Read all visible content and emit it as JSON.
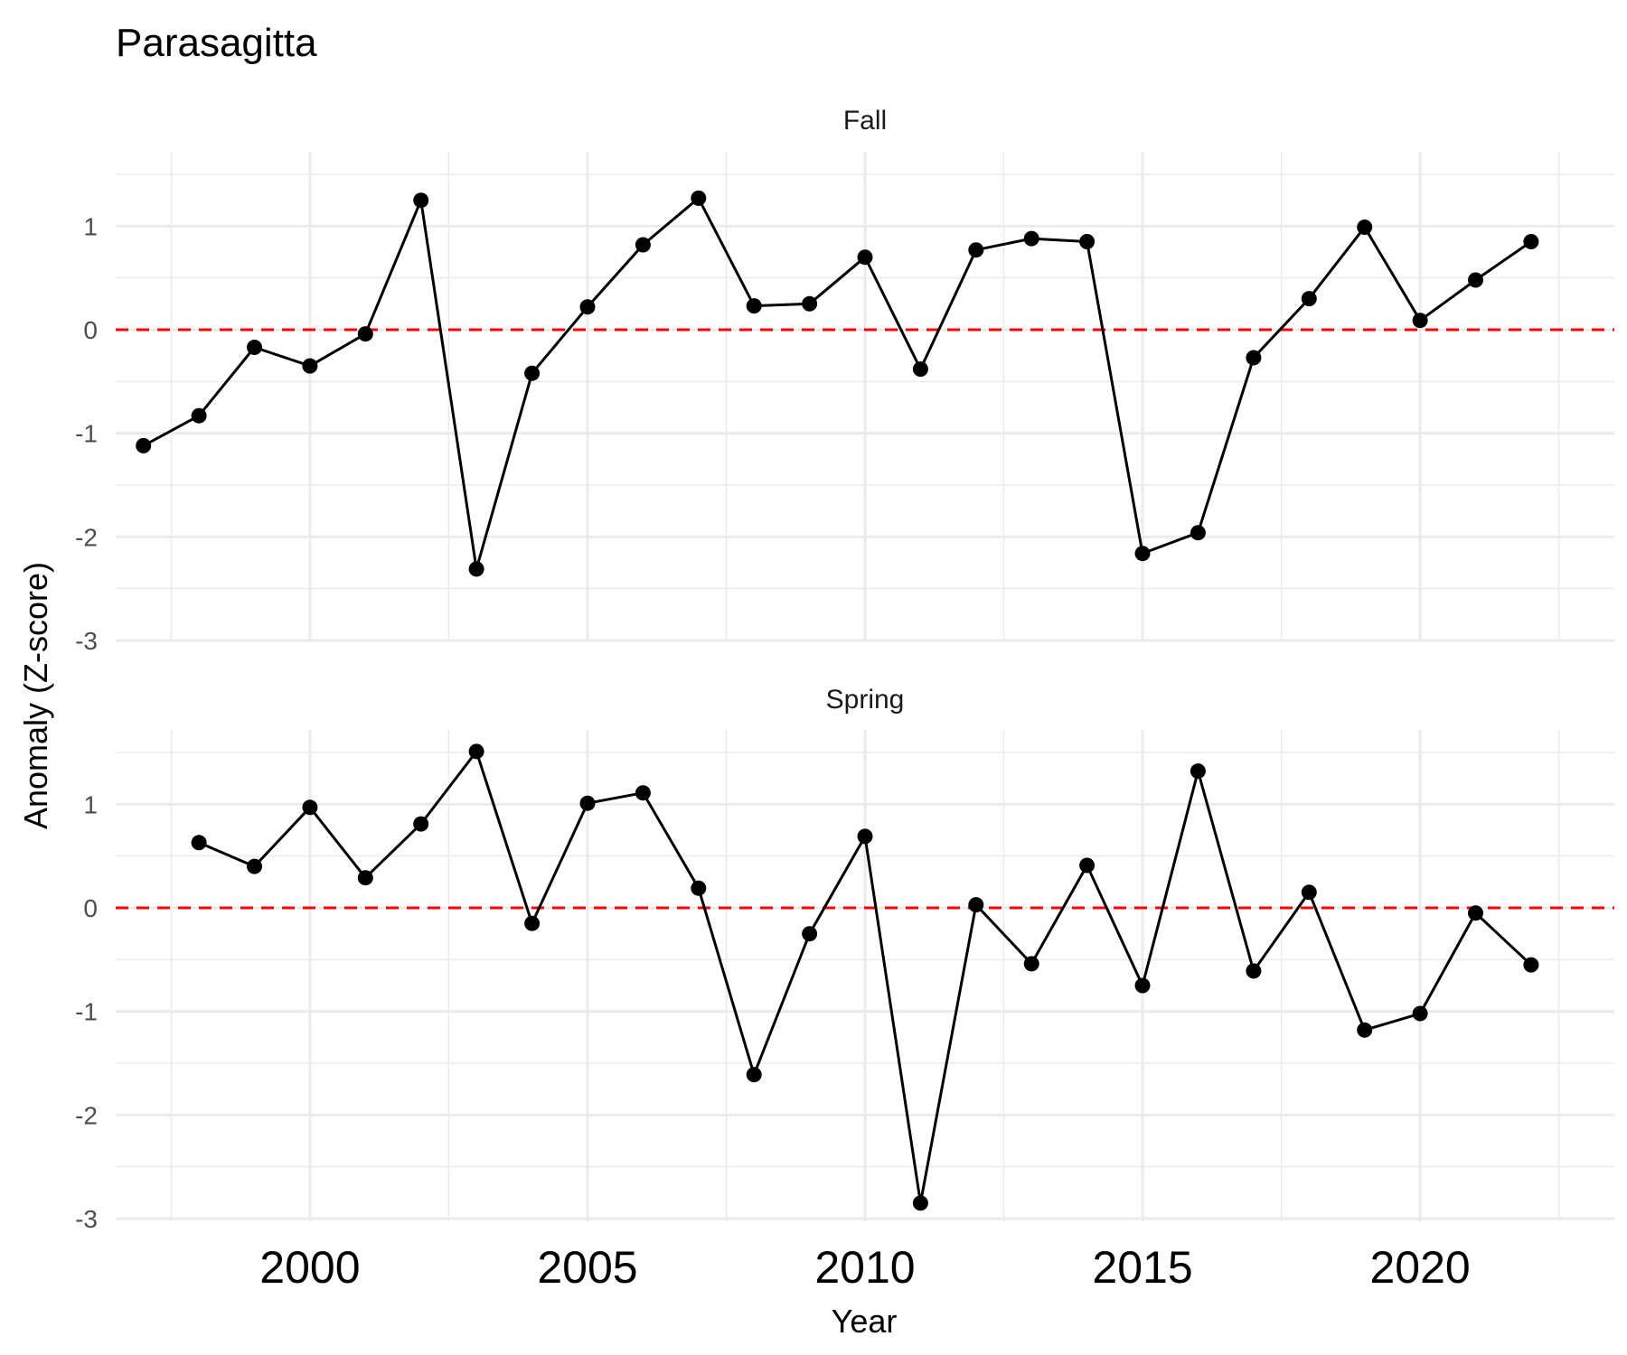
{
  "chart_data": {
    "type": "line",
    "title": "Parasagitta",
    "xlabel": "Year",
    "ylabel": "Anomaly (Z-score)",
    "xlim": [
      1996.5,
      2023.5
    ],
    "ylim": [
      -3,
      1.6
    ],
    "x_ticks": [
      "2000",
      "2005",
      "2010",
      "2015",
      "2020"
    ],
    "y_ticks": [
      "1",
      "0",
      "-1",
      "-2",
      "-3"
    ],
    "reference_line": {
      "y": 0,
      "color": "#ff0000",
      "style": "dashed"
    },
    "grid": true,
    "panels": [
      {
        "name": "Fall",
        "x": [
          1997,
          1998,
          1999,
          2000,
          2001,
          2002,
          2003,
          2004,
          2005,
          2006,
          2007,
          2008,
          2009,
          2010,
          2011,
          2012,
          2013,
          2014,
          2015,
          2016,
          2017,
          2018,
          2019,
          2020,
          2021,
          2022
        ],
        "y": [
          -1.12,
          -0.83,
          -0.17,
          -0.35,
          -0.04,
          1.25,
          -2.31,
          -0.42,
          0.22,
          0.82,
          1.27,
          0.23,
          0.25,
          0.7,
          -0.38,
          0.77,
          0.88,
          0.85,
          -2.16,
          -1.96,
          -0.27,
          0.3,
          0.99,
          0.09,
          0.48,
          0.85
        ]
      },
      {
        "name": "Spring",
        "x": [
          1998,
          1999,
          2000,
          2001,
          2002,
          2003,
          2004,
          2005,
          2006,
          2007,
          2008,
          2009,
          2010,
          2011,
          2012,
          2013,
          2014,
          2015,
          2016,
          2017,
          2018,
          2019,
          2020,
          2021,
          2022
        ],
        "y": [
          0.63,
          0.4,
          0.97,
          0.29,
          0.81,
          1.51,
          -0.15,
          1.01,
          1.11,
          0.19,
          -1.61,
          -0.25,
          0.69,
          -2.85,
          0.03,
          -0.54,
          0.41,
          -0.75,
          1.32,
          -0.61,
          0.15,
          -1.18,
          -1.02,
          -0.05,
          -0.55
        ]
      }
    ]
  }
}
